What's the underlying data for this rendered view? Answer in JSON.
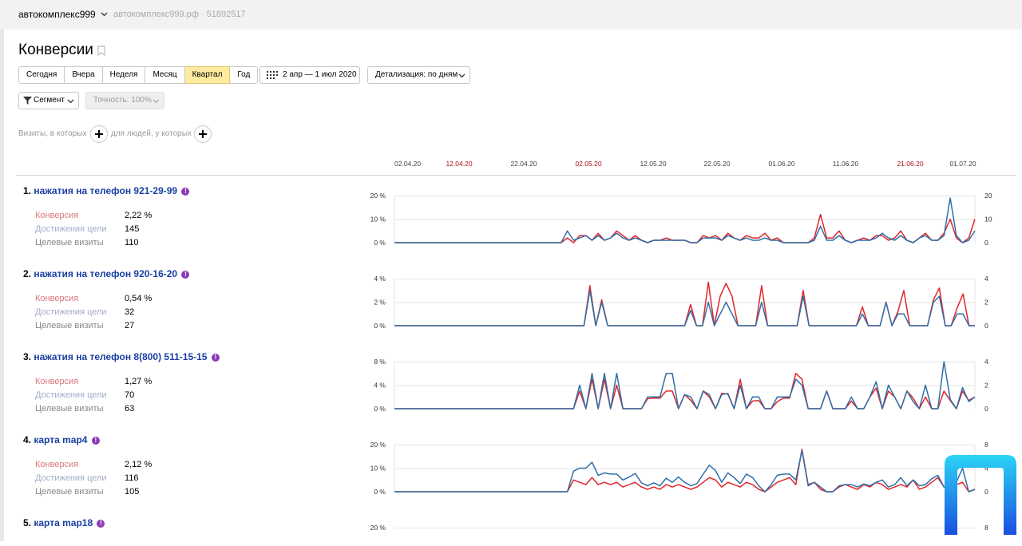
{
  "header": {
    "site_selector": "автокомплекс999",
    "site_meta": "автокомплекс999.рф · 51892517"
  },
  "page": {
    "title": "Конверсии"
  },
  "toolbar": {
    "periods": [
      "Сегодня",
      "Вчера",
      "Неделя",
      "Месяц",
      "Квартал",
      "Год"
    ],
    "active_period": "Квартал",
    "date_range": "2 апр — 1 июл 2020",
    "detail": "Детализация: по дням",
    "segment": "Сегмент",
    "accuracy": "Точность: 100%"
  },
  "filters": {
    "visits_label": "Визиты, в которых",
    "people_label": "для людей, у которых"
  },
  "timeline": {
    "ticks": [
      {
        "label": "02.04.20",
        "weekend": false
      },
      {
        "label": "12.04.20",
        "weekend": true
      },
      {
        "label": "22.04.20",
        "weekend": false
      },
      {
        "label": "02.05.20",
        "weekend": true
      },
      {
        "label": "12.05.20",
        "weekend": false
      },
      {
        "label": "22.05.20",
        "weekend": false
      },
      {
        "label": "01.06.20",
        "weekend": false
      },
      {
        "label": "11.06.20",
        "weekend": false
      },
      {
        "label": "21.06.20",
        "weekend": true
      },
      {
        "label": "01.07.20",
        "weekend": false
      }
    ]
  },
  "metric_labels": {
    "conversion": "Конверсия",
    "achievements": "Достижения цели",
    "target_visits": "Целевые визиты"
  },
  "colors": {
    "conversion": "#e0262c",
    "visits": "#2f6fa8",
    "link": "#1a3fa3",
    "active_period": "#ffeba0"
  },
  "goals": [
    {
      "num": "1.",
      "name": "нажатия на телефон 921-29-99",
      "conversion": "2,22 %",
      "achievements": "145",
      "visits": "110",
      "left_ticks": [
        "20 %",
        "10 %",
        "0 %"
      ],
      "right_ticks": [
        "20",
        "10",
        "0"
      ],
      "left_max": 20,
      "right_max": 20,
      "chart_data": {
        "type": "line",
        "x_start": "02.04.20",
        "x_end": "01.07.20",
        "series": [
          {
            "values": [
              0,
              0,
              0,
              0,
              0,
              0,
              0,
              0,
              0,
              0,
              0,
              0,
              0,
              0,
              0,
              0,
              0,
              0,
              0,
              0,
              0,
              0,
              0,
              0,
              0,
              0,
              0,
              0,
              2,
              0,
              3,
              3,
              1,
              4,
              1,
              2,
              5,
              3,
              1,
              3,
              1,
              0,
              1,
              1,
              2,
              1,
              1,
              1,
              0,
              0,
              3,
              2,
              3,
              1,
              4,
              2,
              1,
              3,
              2,
              2,
              4,
              1,
              2,
              0,
              0,
              0,
              0,
              0,
              2,
              12,
              2,
              2,
              5,
              1,
              0,
              1,
              2,
              1,
              3,
              3,
              1,
              2,
              5,
              1,
              0,
              2,
              4,
              1,
              1,
              4,
              10,
              2,
              0,
              2,
              10
            ]
          },
          {
            "values": [
              0,
              0,
              0,
              0,
              0,
              0,
              0,
              0,
              0,
              0,
              0,
              0,
              0,
              0,
              0,
              0,
              0,
              0,
              0,
              0,
              0,
              0,
              0,
              0,
              0,
              0,
              0,
              0,
              5,
              1,
              2,
              3,
              1,
              3,
              1,
              2,
              4,
              2,
              1,
              2,
              1,
              0,
              1,
              1,
              1,
              1,
              1,
              1,
              0,
              0,
              2,
              2,
              2,
              1,
              3,
              2,
              1,
              2,
              1,
              1,
              2,
              1,
              1,
              0,
              0,
              0,
              0,
              0,
              1,
              7,
              1,
              1,
              3,
              1,
              0,
              1,
              1,
              1,
              2,
              4,
              2,
              1,
              3,
              1,
              0,
              2,
              3,
              1,
              1,
              3,
              19,
              3,
              0,
              1,
              5
            ]
          }
        ]
      }
    },
    {
      "num": "2.",
      "name": "нажатия на телефон 920-16-20",
      "conversion": "0,54 %",
      "achievements": "32",
      "visits": "27",
      "left_ticks": [
        "4 %",
        "2 %",
        "0 %"
      ],
      "right_ticks": [
        "4",
        "2",
        "0"
      ],
      "left_max": 4,
      "right_max": 4,
      "chart_data": {
        "type": "line",
        "x_start": "02.04.20",
        "x_end": "01.07.20",
        "series": [
          {
            "values": [
              0,
              0,
              0,
              0,
              0,
              0,
              0,
              0,
              0,
              0,
              0,
              0,
              0,
              0,
              0,
              0,
              0,
              0,
              0,
              0,
              0,
              0,
              0,
              0,
              0,
              0,
              0,
              0,
              0,
              0,
              0,
              0,
              0,
              3.4,
              0,
              2.2,
              0,
              0,
              0,
              0,
              0,
              0,
              0,
              0,
              0,
              0,
              0,
              0,
              0,
              0,
              1.8,
              0,
              0,
              3.7,
              0,
              2.5,
              3.6,
              2.5,
              0,
              0,
              0,
              0,
              3.4,
              0,
              0,
              0,
              0,
              0,
              0,
              3,
              0,
              0,
              0,
              0,
              0,
              0,
              0,
              0,
              0,
              1.6,
              0,
              0,
              0,
              2,
              0,
              1.2,
              3,
              0,
              0,
              0,
              0,
              2.2,
              3.2,
              0,
              0,
              1.5,
              2.7,
              0,
              0
            ]
          },
          {
            "values": [
              0,
              0,
              0,
              0,
              0,
              0,
              0,
              0,
              0,
              0,
              0,
              0,
              0,
              0,
              0,
              0,
              0,
              0,
              0,
              0,
              0,
              0,
              0,
              0,
              0,
              0,
              0,
              0,
              0,
              0,
              0,
              0,
              0,
              3,
              0,
              2,
              0,
              0,
              0,
              0,
              0,
              0,
              0,
              0,
              0,
              0,
              0,
              0,
              0,
              0,
              1.3,
              0,
              0,
              2,
              0,
              1,
              2,
              1,
              0,
              0,
              0,
              0,
              2,
              0,
              0,
              0,
              0,
              0,
              0,
              2.5,
              0,
              0,
              0,
              0,
              0,
              0,
              0,
              0,
              0,
              1,
              0,
              0,
              0,
              2,
              0,
              1,
              1,
              0,
              0,
              0,
              0,
              2,
              2.5,
              0,
              0,
              1,
              1,
              0,
              0
            ]
          }
        ]
      }
    },
    {
      "num": "3.",
      "name": "нажатия на телефон 8(800) 511-15-15",
      "conversion": "1,27 %",
      "achievements": "70",
      "visits": "63",
      "left_ticks": [
        "8 %",
        "4 %",
        "0 %"
      ],
      "right_ticks": [
        "4",
        "2",
        "0"
      ],
      "left_max": 8,
      "right_max": 4,
      "chart_data": {
        "type": "line",
        "x_start": "02.04.20",
        "x_end": "01.07.20",
        "series": [
          {
            "values": [
              0,
              0,
              0,
              0,
              0,
              0,
              0,
              0,
              0,
              0,
              0,
              0,
              0,
              0,
              0,
              0,
              0,
              0,
              0,
              0,
              0,
              0,
              0,
              0,
              0,
              0,
              0,
              0,
              0,
              0,
              3,
              0,
              5,
              0,
              5,
              0,
              4,
              0,
              0,
              0,
              0,
              1.7,
              1.8,
              1.8,
              3,
              3,
              0,
              2.4,
              1.4,
              0,
              3,
              2,
              0,
              2.6,
              2.5,
              0,
              5,
              0,
              1.3,
              1.4,
              0,
              0,
              1.2,
              1.8,
              1.8,
              6,
              5,
              0,
              0,
              0,
              3,
              0,
              0,
              0,
              1.3,
              0,
              0,
              2,
              3.5,
              0,
              3,
              2,
              0,
              3,
              1.8,
              0,
              2,
              0,
              0,
              3,
              1.4,
              0,
              3,
              1.4,
              2
            ]
          },
          {
            "values": [
              0,
              0,
              0,
              0,
              0,
              0,
              0,
              0,
              0,
              0,
              0,
              0,
              0,
              0,
              0,
              0,
              0,
              0,
              0,
              0,
              0,
              0,
              0,
              0,
              0,
              0,
              0,
              0,
              0,
              0,
              2,
              0,
              3,
              0,
              3,
              0,
              3,
              0,
              0,
              0,
              0,
              1,
              1,
              1,
              3,
              3,
              0,
              1.2,
              1,
              0,
              1.5,
              1.2,
              0,
              1.2,
              1.3,
              0,
              2,
              0,
              1,
              1,
              0,
              0,
              1,
              1,
              1,
              2.5,
              2,
              0,
              0,
              0,
              1.5,
              0,
              0,
              0,
              1,
              0,
              0,
              1,
              2.3,
              0,
              2,
              1,
              0,
              1.5,
              0.6,
              0,
              2,
              0,
              0,
              4,
              0.8,
              0,
              1.8,
              0.6,
              1
            ]
          }
        ]
      }
    },
    {
      "num": "4.",
      "name": "карта map4",
      "conversion": "2,12 %",
      "achievements": "116",
      "visits": "105",
      "left_ticks": [
        "20 %",
        "10 %",
        "0 %"
      ],
      "right_ticks": [
        "8",
        "4",
        "0"
      ],
      "left_max": 20,
      "right_max": 8,
      "chart_data": {
        "type": "line",
        "x_start": "02.04.20",
        "x_end": "01.07.20",
        "series": [
          {
            "values": [
              0,
              0,
              0,
              0,
              0,
              0,
              0,
              0,
              0,
              0,
              0,
              0,
              0,
              0,
              0,
              0,
              0,
              0,
              0,
              0,
              0,
              0,
              0,
              0,
              0,
              0,
              0,
              0,
              0,
              5,
              4,
              3,
              6,
              3,
              4,
              3,
              4,
              2,
              3,
              4,
              2,
              1,
              2,
              1,
              3,
              2,
              3,
              2,
              1,
              2,
              4,
              6,
              5,
              2,
              4,
              3,
              2,
              4,
              3,
              1,
              0,
              2,
              4,
              5,
              6,
              3,
              18,
              3,
              4,
              1,
              0,
              0,
              2,
              3,
              2,
              1,
              3,
              2,
              4,
              3,
              1,
              2,
              3,
              2,
              5,
              1,
              2,
              4,
              6,
              2,
              1,
              3,
              4,
              0,
              1
            ]
          },
          {
            "values": [
              0,
              0,
              0,
              0,
              0,
              0,
              0,
              0,
              0,
              0,
              0,
              0,
              0,
              0,
              0,
              0,
              0,
              0,
              0,
              0,
              0,
              0,
              0,
              0,
              0,
              0,
              0,
              0,
              0,
              3.5,
              4,
              4,
              5,
              2.8,
              3.2,
              3,
              3,
              2,
              2.5,
              3.1,
              1.5,
              1,
              1.5,
              1,
              2.3,
              1.6,
              2.5,
              1.6,
              1,
              1.4,
              3,
              4.5,
              3.6,
              1.6,
              3.2,
              2.4,
              1.4,
              3,
              2.4,
              1,
              0,
              1.2,
              2.8,
              3,
              3,
              2,
              7,
              1,
              1.6,
              0.8,
              0,
              0,
              1,
              1.2,
              1.2,
              0.8,
              1.3,
              1,
              1.6,
              2,
              0.8,
              1.2,
              2.4,
              1,
              2,
              1,
              1.2,
              2.2,
              2.8,
              0.8,
              0.8,
              1.6,
              4,
              0,
              0.4
            ]
          }
        ]
      }
    },
    {
      "num": "5.",
      "name": "карта map18",
      "left_ticks": [
        "20 %"
      ],
      "right_ticks": [
        "8"
      ],
      "left_max": 20,
      "right_max": 8
    }
  ]
}
